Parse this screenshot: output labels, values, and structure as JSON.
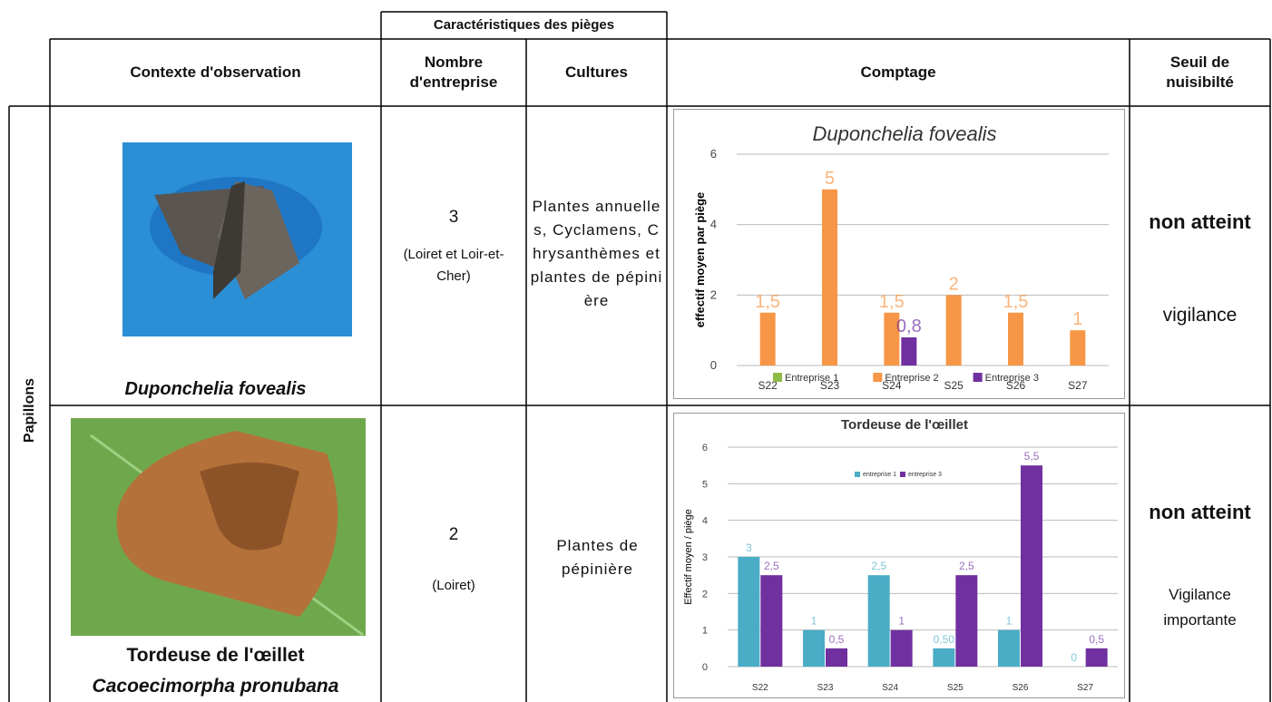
{
  "table": {
    "group_header": "Caractéristiques des pièges",
    "headers": [
      "Contexte d'observation",
      "Nombre d'entreprise",
      "Cultures",
      "Comptage",
      "Seuil de nuisibilté"
    ],
    "side_label": "Papillons",
    "rows": [
      {
        "name": "Duponchelia fovealis",
        "count": "3",
        "count_note": "(Loiret et Loir-et-Cher)",
        "cultures": "Plantes annuelles, Cyclamens, Chrysanthèmes et plantes de pépinière",
        "threshold": "non atteint",
        "threshold_note": "vigilance"
      },
      {
        "name": "Tordeuse de l'œillet",
        "latin": "Cacoecimorpha pronubana",
        "count": "2",
        "count_note": "(Loiret)",
        "cultures": "Plantes de pépinière",
        "threshold": "non atteint",
        "threshold_note": "Vigilance importante"
      }
    ]
  },
  "chart_data": [
    {
      "type": "bar",
      "title": "Duponchelia fovealis",
      "ylabel": "effectif moyen par piège",
      "categories": [
        "S22",
        "S23",
        "S24",
        "S25",
        "S26",
        "S27"
      ],
      "series": [
        {
          "name": "Entreprise 1",
          "color": "#8fbc45",
          "values": [
            null,
            null,
            null,
            null,
            null,
            null
          ]
        },
        {
          "name": "Entreprise 2",
          "color": "#f79646",
          "values": [
            1.5,
            5,
            1.5,
            2,
            1.5,
            1
          ],
          "value_labels": [
            "1,5",
            "5",
            "1,5",
            "2",
            "1,5",
            "1"
          ]
        },
        {
          "name": "Entreprise 3",
          "color": "#7030a0",
          "values": [
            null,
            null,
            0.8,
            null,
            null,
            null
          ],
          "value_labels": [
            null,
            null,
            "0,8",
            null,
            null,
            null
          ]
        }
      ],
      "ylim": [
        0,
        6
      ],
      "yticks": [
        0,
        2,
        4,
        6
      ],
      "grid": true,
      "legend": "bottom"
    },
    {
      "type": "bar",
      "title": "Tordeuse de l'œillet",
      "ylabel": "Effectif moyen / piège",
      "categories": [
        "S22",
        "S23",
        "S24",
        "S25",
        "S26",
        "S27"
      ],
      "series": [
        {
          "name": "entreprise 1",
          "color": "#4bacc6",
          "values": [
            3,
            1,
            2.5,
            0.5,
            1,
            0
          ],
          "value_labels": [
            "3",
            "1",
            "2,5",
            "0,50",
            "1",
            "0"
          ]
        },
        {
          "name": "entreprise 3",
          "color": "#7030a0",
          "values": [
            2.5,
            0.5,
            1,
            2.5,
            5.5,
            0.5
          ],
          "value_labels": [
            "2,5",
            "0,5",
            "1",
            "2,5",
            "5,5",
            "0,5"
          ]
        }
      ],
      "ylim": [
        0,
        6
      ],
      "yticks": [
        0,
        1,
        2,
        3,
        4,
        5,
        6
      ],
      "grid": true,
      "legend": "top"
    }
  ]
}
